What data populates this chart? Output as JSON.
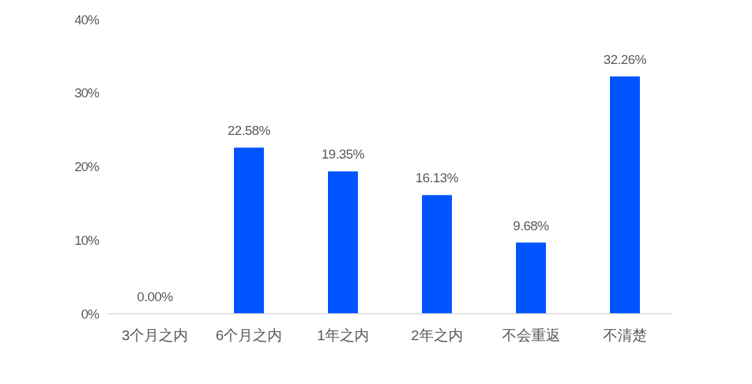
{
  "chart_data": {
    "type": "bar",
    "categories": [
      "3个月之内",
      "6个月之内",
      "1年之内",
      "2年之内",
      "不会重返",
      "不清楚"
    ],
    "values": [
      0,
      22.58,
      19.35,
      16.13,
      9.68,
      32.26
    ],
    "color": "#0055ff",
    "value_labels": [
      "0.00%",
      "22.58%",
      "19.35%",
      "16.13%",
      "9.68%",
      "32.26%"
    ],
    "ylim": [
      0,
      40
    ],
    "yticks": [
      {
        "value": 0,
        "label": "0%"
      },
      {
        "value": 10,
        "label": "10%"
      },
      {
        "value": 20,
        "label": "20%"
      },
      {
        "value": 30,
        "label": "30%"
      },
      {
        "value": 40,
        "label": "40%"
      }
    ]
  }
}
